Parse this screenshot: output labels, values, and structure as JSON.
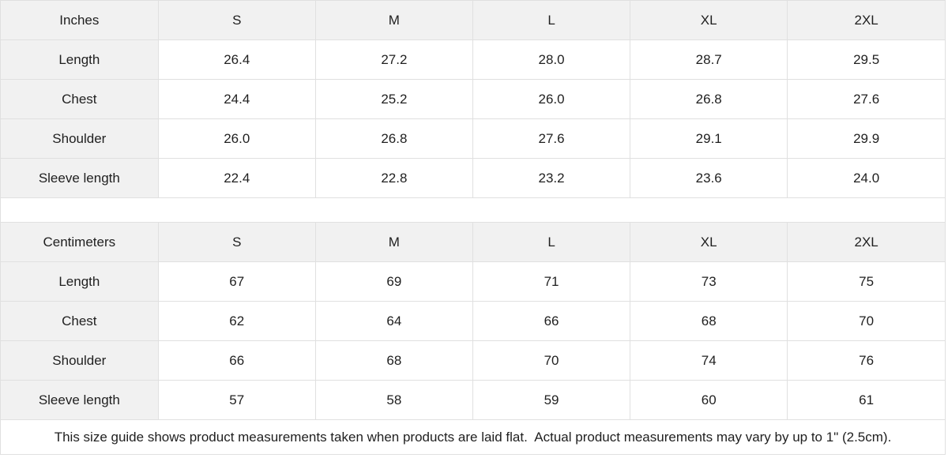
{
  "colors": {
    "header_bg": "#f1f1f1",
    "border": "#e0e0e0",
    "text": "#1f1f1f",
    "background": "#ffffff"
  },
  "tables": [
    {
      "unit_label": "Inches",
      "sizes": [
        "S",
        "M",
        "L",
        "XL",
        "2XL"
      ],
      "rows": [
        {
          "label": "Length",
          "values": [
            "26.4",
            "27.2",
            "28.0",
            "28.7",
            "29.5"
          ]
        },
        {
          "label": "Chest",
          "values": [
            "24.4",
            "25.2",
            "26.0",
            "26.8",
            "27.6"
          ]
        },
        {
          "label": "Shoulder",
          "values": [
            "26.0",
            "26.8",
            "27.6",
            "29.1",
            "29.9"
          ]
        },
        {
          "label": "Sleeve length",
          "values": [
            "22.4",
            "22.8",
            "23.2",
            "23.6",
            "24.0"
          ]
        }
      ]
    },
    {
      "unit_label": "Centimeters",
      "sizes": [
        "S",
        "M",
        "L",
        "XL",
        "2XL"
      ],
      "rows": [
        {
          "label": "Length",
          "values": [
            "67",
            "69",
            "71",
            "73",
            "75"
          ]
        },
        {
          "label": "Chest",
          "values": [
            "62",
            "64",
            "66",
            "68",
            "70"
          ]
        },
        {
          "label": "Shoulder",
          "values": [
            "66",
            "68",
            "70",
            "74",
            "76"
          ]
        },
        {
          "label": "Sleeve length",
          "values": [
            "57",
            "58",
            "59",
            "60",
            "61"
          ]
        }
      ]
    }
  ],
  "footer": {
    "note": "This size guide shows product measurements taken when products are laid flat.  Actual product measurements may vary by up to 1\" (2.5cm)."
  },
  "chart_data": [
    {
      "type": "table",
      "title": "Inches",
      "columns": [
        "Inches",
        "S",
        "M",
        "L",
        "XL",
        "2XL"
      ],
      "rows": [
        [
          "Length",
          26.4,
          27.2,
          28.0,
          28.7,
          29.5
        ],
        [
          "Chest",
          24.4,
          25.2,
          26.0,
          26.8,
          27.6
        ],
        [
          "Shoulder",
          26.0,
          26.8,
          27.6,
          29.1,
          29.9
        ],
        [
          "Sleeve length",
          22.4,
          22.8,
          23.2,
          23.6,
          24.0
        ]
      ]
    },
    {
      "type": "table",
      "title": "Centimeters",
      "columns": [
        "Centimeters",
        "S",
        "M",
        "L",
        "XL",
        "2XL"
      ],
      "rows": [
        [
          "Length",
          67,
          69,
          71,
          73,
          75
        ],
        [
          "Chest",
          62,
          64,
          66,
          68,
          70
        ],
        [
          "Shoulder",
          66,
          68,
          70,
          74,
          76
        ],
        [
          "Sleeve length",
          57,
          58,
          59,
          60,
          61
        ]
      ]
    }
  ]
}
